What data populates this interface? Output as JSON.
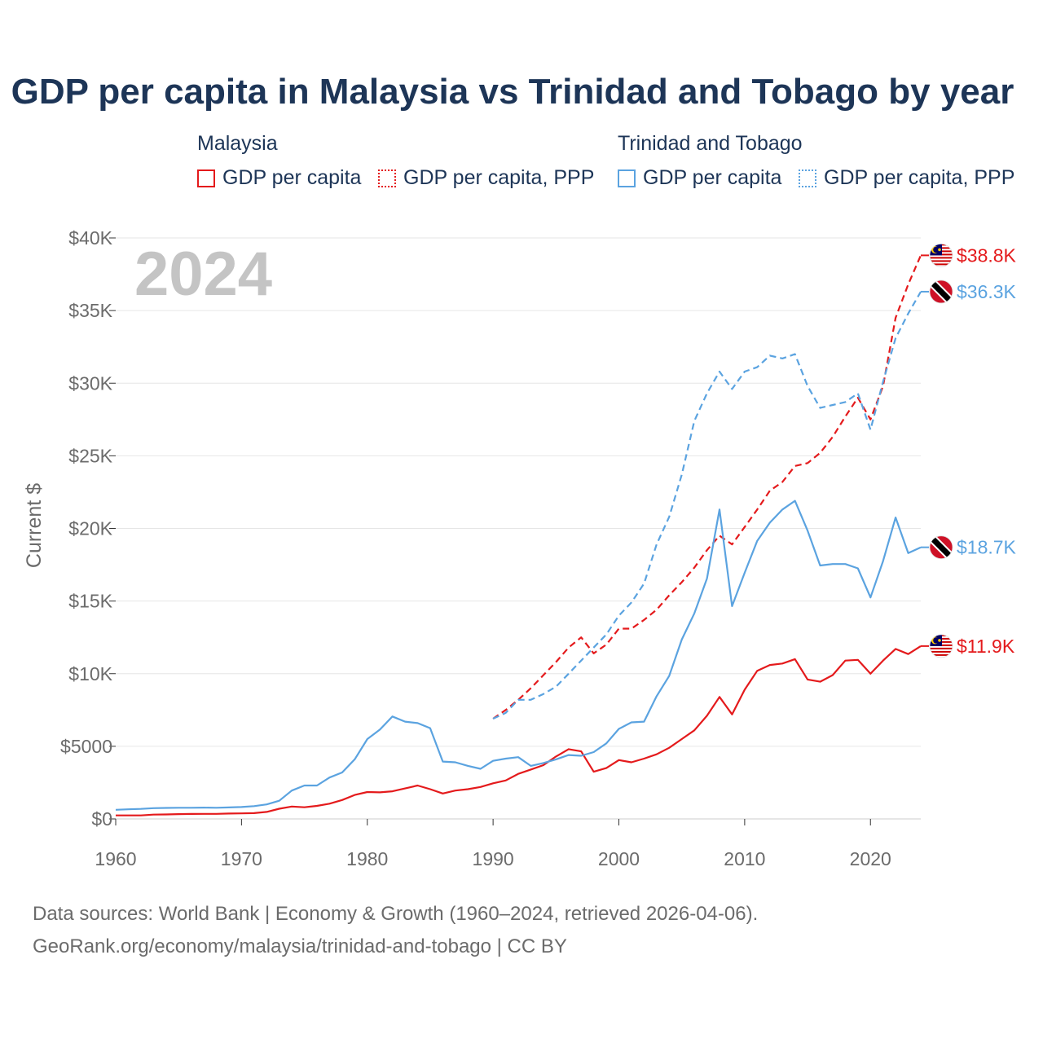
{
  "chart_data": {
    "type": "line",
    "title": "GDP per capita in Malaysia vs Trinidad and Tobago by year",
    "year_label": "2024",
    "ylabel": "Current $",
    "xlabel": "",
    "xlim": [
      1960,
      2024
    ],
    "ylim": [
      0,
      40000
    ],
    "x_ticks": [
      "1960",
      "1970",
      "1980",
      "1990",
      "2000",
      "2010",
      "2020"
    ],
    "x_tick_values": [
      1960,
      1970,
      1980,
      1990,
      2000,
      2010,
      2020
    ],
    "y_ticks": [
      "$0",
      "$5000",
      "$10K",
      "$15K",
      "$20K",
      "$25K",
      "$30K",
      "$35K",
      "$40K"
    ],
    "y_tick_values": [
      0,
      5000,
      10000,
      15000,
      20000,
      25000,
      30000,
      35000,
      40000
    ],
    "legend": {
      "groups": [
        {
          "title": "Malaysia",
          "items": [
            "GDP per capita",
            "GDP per capita, PPP"
          ]
        },
        {
          "title": "Trinidad and Tobago",
          "items": [
            "GDP per capita",
            "GDP per capita, PPP"
          ]
        }
      ]
    },
    "series": [
      {
        "name": "Malaysia GDP per capita",
        "color": "#e41a1c",
        "dash": "solid",
        "x_start": 1960,
        "end_label": "$11.9K",
        "flag": "malaysia",
        "values": [
          240,
          240,
          240,
          300,
          310,
          330,
          340,
          350,
          350,
          370,
          380,
          400,
          480,
          700,
          850,
          800,
          900,
          1050,
          1300,
          1650,
          1850,
          1830,
          1900,
          2100,
          2300,
          2050,
          1750,
          1950,
          2050,
          2200,
          2450,
          2650,
          3100,
          3400,
          3700,
          4300,
          4800,
          4650,
          3250,
          3500,
          4050,
          3900,
          4150,
          4450,
          4900,
          5500,
          6100,
          7100,
          8400,
          7200,
          8900,
          10200,
          10600,
          10700,
          11000,
          9600,
          9450,
          9900,
          10900,
          10950,
          10000,
          10900,
          11700,
          11350,
          11900
        ]
      },
      {
        "name": "Malaysia GDP per capita, PPP",
        "color": "#e41a1c",
        "dash": "dashed",
        "x_start": 1990,
        "end_label": "$38.8K",
        "flag": "malaysia",
        "values": [
          6900,
          7500,
          8200,
          9000,
          9900,
          10800,
          11800,
          12500,
          11400,
          12000,
          13100,
          13100,
          13700,
          14400,
          15400,
          16300,
          17300,
          18500,
          19500,
          18900,
          20100,
          21300,
          22600,
          23200,
          24300,
          24500,
          25200,
          26300,
          27700,
          29000,
          27500,
          29800,
          34500,
          36800,
          38800
        ]
      },
      {
        "name": "Trinidad and Tobago GDP per capita",
        "color": "#5ba3e0",
        "dash": "solid",
        "x_start": 1960,
        "end_label": "$18.7K",
        "flag": "trinidad",
        "values": [
          630,
          660,
          690,
          740,
          760,
          770,
          770,
          780,
          770,
          790,
          820,
          880,
          1000,
          1250,
          1950,
          2300,
          2300,
          2850,
          3200,
          4100,
          5500,
          6150,
          7050,
          6700,
          6600,
          6250,
          3950,
          3900,
          3650,
          3450,
          4000,
          4150,
          4250,
          3650,
          3850,
          4100,
          4400,
          4350,
          4600,
          5200,
          6200,
          6650,
          6700,
          8450,
          9850,
          12350,
          14150,
          16550,
          21300,
          14650,
          16950,
          19150,
          20400,
          21300,
          21900,
          19850,
          17450,
          17550,
          17550,
          17250,
          15250,
          17750,
          20750,
          18300,
          18700
        ]
      },
      {
        "name": "Trinidad and Tobago GDP per capita, PPP",
        "color": "#5ba3e0",
        "dash": "dashed",
        "x_start": 1990,
        "end_label": "$36.3K",
        "flag": "trinidad",
        "values": [
          6900,
          7300,
          8200,
          8200,
          8600,
          9100,
          10000,
          10900,
          11800,
          12700,
          14000,
          14900,
          16200,
          18900,
          20800,
          23700,
          27400,
          29300,
          30800,
          29600,
          30800,
          31100,
          31900,
          31700,
          32000,
          29800,
          28300,
          28500,
          28700,
          29300,
          26800,
          30100,
          33100,
          34800,
          36300
        ]
      }
    ]
  },
  "sources": {
    "line1": "Data sources: World Bank | Economy & Growth (1960–2024, retrieved 2026-04-06).",
    "line2": "GeoRank.org/economy/malaysia/trinidad-and-tobago | CC BY"
  }
}
